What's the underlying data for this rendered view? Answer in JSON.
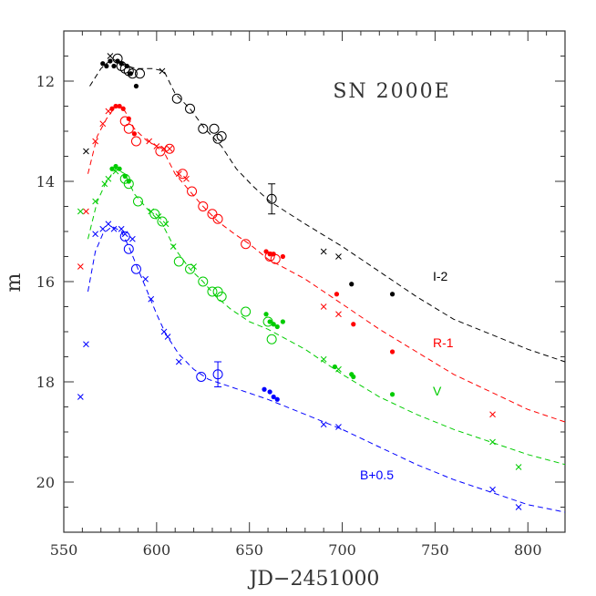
{
  "chart_data": {
    "type": "scatter",
    "title": "SN 2000E",
    "xlabel": "JD−2451000",
    "ylabel": "m",
    "xlim": [
      550,
      820
    ],
    "ylim": [
      21,
      11
    ],
    "y_inverted": true,
    "grid": false,
    "x_ticks": [
      "550",
      "600",
      "650",
      "700",
      "750",
      "800"
    ],
    "y_ticks": [
      "12",
      "14",
      "16",
      "18",
      "20"
    ],
    "series": [
      {
        "name": "I-2",
        "color": "#000000",
        "template": [
          [
            564,
            12.1
          ],
          [
            570,
            11.75
          ],
          [
            576,
            11.55
          ],
          [
            583,
            11.7
          ],
          [
            590,
            11.75
          ],
          [
            598,
            11.75
          ],
          [
            604,
            11.8
          ],
          [
            610,
            12.25
          ],
          [
            618,
            12.55
          ],
          [
            626,
            12.95
          ],
          [
            635,
            13.3
          ],
          [
            643,
            13.75
          ],
          [
            652,
            14.1
          ],
          [
            661,
            14.4
          ],
          [
            680,
            14.85
          ],
          [
            700,
            15.3
          ],
          [
            720,
            15.8
          ],
          [
            740,
            16.3
          ],
          [
            760,
            16.75
          ],
          [
            780,
            17.05
          ],
          [
            800,
            17.35
          ],
          [
            820,
            17.6
          ]
        ],
        "circles": [
          [
            579,
            11.55
          ],
          [
            581,
            11.7
          ],
          [
            583,
            11.75
          ],
          [
            585,
            11.8
          ],
          [
            587,
            11.85
          ],
          [
            591,
            11.85
          ],
          [
            611,
            12.35
          ],
          [
            618,
            12.55
          ],
          [
            625,
            12.95
          ],
          [
            631,
            12.95
          ],
          [
            633,
            13.15
          ],
          [
            635,
            13.1
          ],
          [
            662,
            14.35
          ]
        ],
        "circles_err": [
          0.3
        ],
        "dots": [
          [
            571,
            11.65
          ],
          [
            573,
            11.7
          ],
          [
            575,
            11.6
          ],
          [
            577,
            11.7
          ],
          [
            579,
            11.6
          ],
          [
            581,
            11.65
          ],
          [
            584,
            11.7
          ],
          [
            586,
            11.85
          ],
          [
            589,
            12.1
          ],
          [
            705,
            16.05
          ],
          [
            727,
            16.25
          ]
        ],
        "crosses": [
          [
            575,
            11.5
          ],
          [
            603,
            11.8
          ],
          [
            562,
            13.4
          ],
          [
            690,
            15.4
          ],
          [
            698,
            15.5
          ]
        ]
      },
      {
        "name": "R-1",
        "color": "#ff0000",
        "template": [
          [
            563,
            13.85
          ],
          [
            568,
            13.1
          ],
          [
            573,
            12.75
          ],
          [
            578,
            12.5
          ],
          [
            583,
            12.6
          ],
          [
            588,
            12.95
          ],
          [
            595,
            13.2
          ],
          [
            603,
            13.35
          ],
          [
            610,
            13.85
          ],
          [
            618,
            14.2
          ],
          [
            625,
            14.5
          ],
          [
            633,
            14.8
          ],
          [
            642,
            15.05
          ],
          [
            650,
            15.25
          ],
          [
            660,
            15.55
          ],
          [
            680,
            15.95
          ],
          [
            700,
            16.45
          ],
          [
            720,
            16.95
          ],
          [
            740,
            17.4
          ],
          [
            760,
            17.85
          ],
          [
            780,
            18.2
          ],
          [
            800,
            18.55
          ],
          [
            820,
            18.8
          ]
        ],
        "circles": [
          [
            583,
            12.8
          ],
          [
            585,
            12.95
          ],
          [
            589,
            13.2
          ],
          [
            602,
            13.4
          ],
          [
            607,
            13.35
          ],
          [
            614,
            13.85
          ],
          [
            619,
            14.2
          ],
          [
            625,
            14.5
          ],
          [
            630,
            14.65
          ],
          [
            633,
            14.75
          ],
          [
            648,
            15.25
          ],
          [
            661,
            15.5
          ],
          [
            664,
            15.55
          ]
        ],
        "circles_err": [],
        "dots": [
          [
            576,
            12.55
          ],
          [
            578,
            12.5
          ],
          [
            580,
            12.5
          ],
          [
            582,
            12.55
          ],
          [
            585,
            12.75
          ],
          [
            588,
            13.05
          ],
          [
            659,
            15.4
          ],
          [
            661,
            15.45
          ],
          [
            663,
            15.45
          ],
          [
            668,
            15.5
          ],
          [
            697,
            16.25
          ],
          [
            706,
            16.85
          ],
          [
            727,
            17.4
          ]
        ],
        "crosses": [
          [
            567,
            13.2
          ],
          [
            571,
            12.85
          ],
          [
            574,
            12.6
          ],
          [
            596,
            13.2
          ],
          [
            600,
            13.3
          ],
          [
            604,
            13.35
          ],
          [
            607,
            13.35
          ],
          [
            612,
            13.85
          ],
          [
            616,
            13.95
          ],
          [
            559,
            15.7
          ],
          [
            562,
            14.6
          ],
          [
            690,
            16.5
          ],
          [
            698,
            16.65
          ],
          [
            781,
            18.65
          ]
        ]
      },
      {
        "name": "V",
        "color": "#00cc00",
        "template": [
          [
            563,
            15.15
          ],
          [
            568,
            14.4
          ],
          [
            573,
            14.0
          ],
          [
            578,
            13.75
          ],
          [
            583,
            13.85
          ],
          [
            588,
            14.25
          ],
          [
            595,
            14.55
          ],
          [
            603,
            14.85
          ],
          [
            610,
            15.35
          ],
          [
            618,
            15.75
          ],
          [
            625,
            16.0
          ],
          [
            632,
            16.3
          ],
          [
            640,
            16.55
          ],
          [
            650,
            16.8
          ],
          [
            660,
            16.95
          ],
          [
            680,
            17.35
          ],
          [
            700,
            17.85
          ],
          [
            720,
            18.3
          ],
          [
            740,
            18.65
          ],
          [
            760,
            18.95
          ],
          [
            780,
            19.2
          ],
          [
            800,
            19.45
          ],
          [
            820,
            19.65
          ]
        ],
        "circles": [
          [
            583,
            13.95
          ],
          [
            585,
            14.05
          ],
          [
            590,
            14.4
          ],
          [
            599,
            14.65
          ],
          [
            603,
            14.8
          ],
          [
            612,
            15.6
          ],
          [
            618,
            15.75
          ],
          [
            625,
            16.0
          ],
          [
            630,
            16.2
          ],
          [
            633,
            16.2
          ],
          [
            635,
            16.3
          ],
          [
            648,
            16.6
          ],
          [
            660,
            16.8
          ],
          [
            662,
            17.15
          ]
        ],
        "circles_err": [],
        "dots": [
          [
            576,
            13.75
          ],
          [
            578,
            13.7
          ],
          [
            580,
            13.75
          ],
          [
            583,
            13.9
          ],
          [
            585,
            14.0
          ],
          [
            659,
            16.65
          ],
          [
            661,
            16.8
          ],
          [
            663,
            16.85
          ],
          [
            665,
            16.9
          ],
          [
            668,
            16.8
          ],
          [
            696,
            17.7
          ],
          [
            705,
            17.85
          ],
          [
            706,
            17.9
          ],
          [
            727,
            18.25
          ]
        ],
        "crosses": [
          [
            567,
            14.4
          ],
          [
            572,
            14.05
          ],
          [
            574,
            13.95
          ],
          [
            578,
            13.8
          ],
          [
            597,
            14.6
          ],
          [
            601,
            14.7
          ],
          [
            605,
            14.85
          ],
          [
            609,
            15.3
          ],
          [
            620,
            15.7
          ],
          [
            559,
            14.6
          ],
          [
            690,
            17.55
          ],
          [
            698,
            17.75
          ],
          [
            781,
            19.2
          ],
          [
            795,
            19.7
          ]
        ]
      },
      {
        "name": "B+0.5",
        "color": "#0000ff",
        "template": [
          [
            563,
            16.2
          ],
          [
            567,
            15.4
          ],
          [
            571,
            15.05
          ],
          [
            576,
            14.9
          ],
          [
            581,
            15.0
          ],
          [
            585,
            15.3
          ],
          [
            590,
            15.75
          ],
          [
            595,
            16.2
          ],
          [
            600,
            16.65
          ],
          [
            605,
            17.05
          ],
          [
            612,
            17.45
          ],
          [
            620,
            17.75
          ],
          [
            628,
            17.95
          ],
          [
            640,
            18.1
          ],
          [
            660,
            18.35
          ],
          [
            680,
            18.65
          ],
          [
            700,
            18.95
          ],
          [
            720,
            19.3
          ],
          [
            740,
            19.65
          ],
          [
            760,
            19.95
          ],
          [
            780,
            20.2
          ],
          [
            800,
            20.45
          ],
          [
            820,
            20.6
          ]
        ],
        "circles": [
          [
            583,
            15.1
          ],
          [
            585,
            15.35
          ],
          [
            589,
            15.75
          ],
          [
            624,
            17.9
          ],
          [
            633,
            17.85
          ]
        ],
        "circles_err": [
          0.25
        ],
        "dots": [
          [
            658,
            18.15
          ],
          [
            661,
            18.2
          ],
          [
            663,
            18.3
          ],
          [
            665,
            18.35
          ]
        ],
        "crosses": [
          [
            562,
            17.25
          ],
          [
            559,
            18.3
          ],
          [
            567,
            15.05
          ],
          [
            571,
            14.95
          ],
          [
            574,
            14.85
          ],
          [
            577,
            14.95
          ],
          [
            581,
            14.95
          ],
          [
            583,
            15.05
          ],
          [
            587,
            15.15
          ],
          [
            594,
            15.95
          ],
          [
            597,
            16.35
          ],
          [
            604,
            17.0
          ],
          [
            606,
            17.1
          ],
          [
            612,
            17.6
          ],
          [
            690,
            18.85
          ],
          [
            698,
            18.9
          ],
          [
            781,
            20.15
          ],
          [
            795,
            20.5
          ]
        ]
      }
    ]
  }
}
